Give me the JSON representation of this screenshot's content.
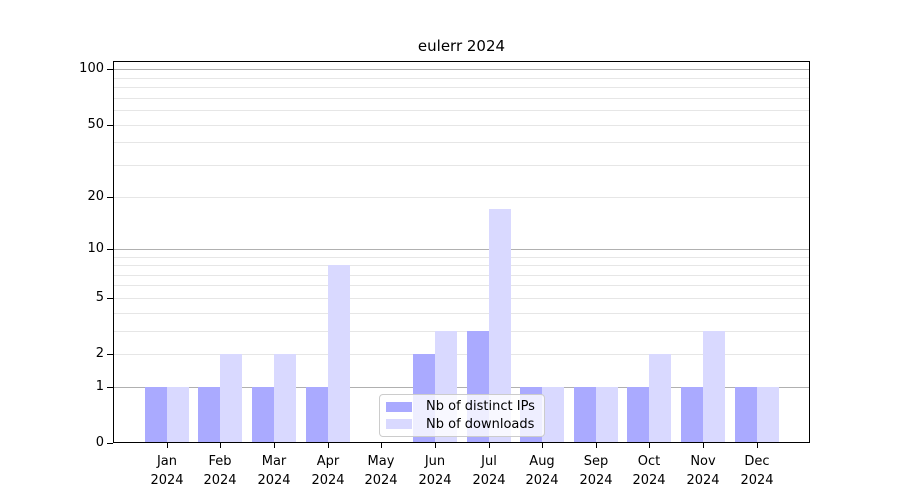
{
  "chart_data": {
    "type": "bar",
    "title": "eulerr 2024",
    "categories": [
      "Jan 2024",
      "Feb 2024",
      "Mar 2024",
      "Apr 2024",
      "May 2024",
      "Jun 2024",
      "Jul 2024",
      "Aug 2024",
      "Sep 2024",
      "Oct 2024",
      "Nov 2024",
      "Dec 2024"
    ],
    "series": [
      {
        "name": "Nb of distinct IPs",
        "color": "#aaaaff",
        "values": [
          1,
          1,
          1,
          1,
          0,
          2,
          3,
          1,
          1,
          1,
          1,
          1
        ]
      },
      {
        "name": "Nb of downloads",
        "color": "#d9d9ff",
        "values": [
          1,
          2,
          2,
          8,
          0,
          3,
          17,
          1,
          1,
          2,
          3,
          1
        ]
      }
    ],
    "yscale": "log1p",
    "ylim": [
      0,
      111
    ],
    "yticks": [
      0,
      1,
      2,
      5,
      10,
      20,
      50,
      100
    ],
    "major_gridlines": [
      1,
      10,
      100
    ],
    "minor_gridlines": [
      2,
      3,
      4,
      5,
      6,
      7,
      8,
      9,
      20,
      30,
      40,
      50,
      60,
      70,
      80,
      90
    ],
    "grid": true,
    "legend_position": "lower center",
    "colors": {
      "bar_distinct_ips": "#aaaaff",
      "bar_downloads": "#d9d9ff",
      "major_grid": "#b0b0b0",
      "minor_grid": "#e6e6e6",
      "axis": "#000000",
      "text": "#000000",
      "legend_border": "#cccccc"
    }
  }
}
